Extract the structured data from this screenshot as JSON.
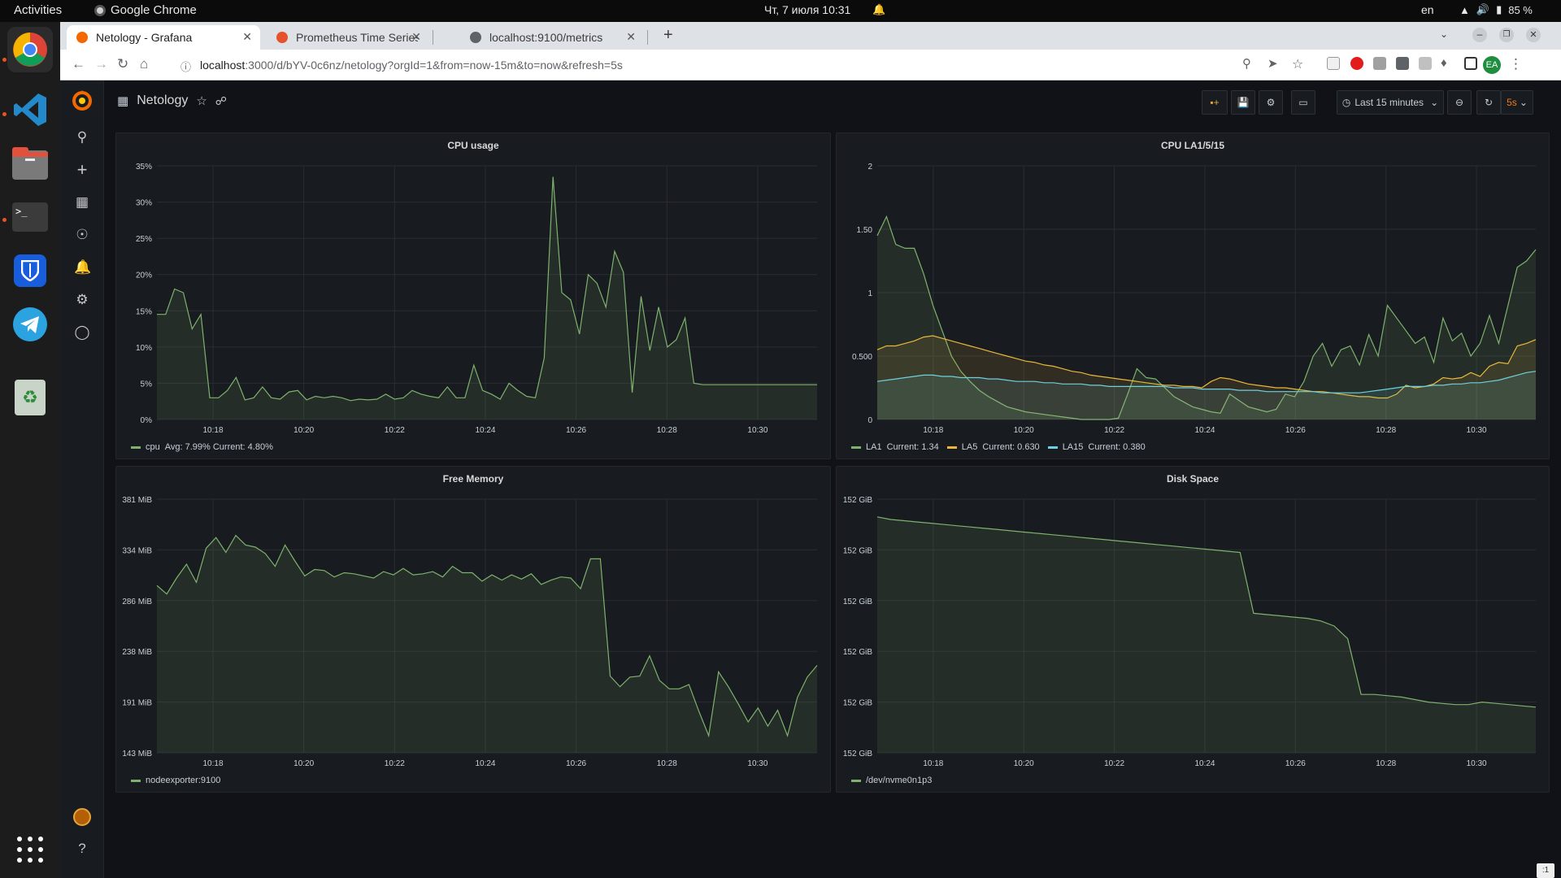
{
  "topbar": {
    "activities": "Activities",
    "app_name": "Google Chrome",
    "clock": "Чт, 7 июля  10:31",
    "lang": "en",
    "battery": "85 %"
  },
  "dock": {
    "items": [
      "chrome-icon",
      "vscode-icon",
      "files-icon",
      "terminal-icon",
      "bitwarden-icon",
      "telegram-icon",
      "trash-icon"
    ],
    "apps_grid": "show-apps-icon"
  },
  "browser": {
    "tabs": [
      {
        "title": "Netology - Grafana",
        "active": true
      },
      {
        "title": "Prometheus Time Series C",
        "active": false
      },
      {
        "title": "localhost:9100/metrics",
        "active": false
      }
    ],
    "url_host": "localhost",
    "url_rest": ":3000/d/bYV-0c6nz/netology?orgId=1&from=now-15m&to=now&refresh=5s",
    "profile": "EA"
  },
  "grafana": {
    "dashboard_title": "Netology",
    "time_range": "Last 15 minutes",
    "refresh": "5s",
    "corner_text": ":1",
    "x_ticks": [
      "10:18",
      "10:20",
      "10:22",
      "10:24",
      "10:26",
      "10:28",
      "10:30"
    ],
    "colors": {
      "green": "#7eb26d",
      "yellow": "#eab839",
      "blue": "#6ed0e0"
    }
  },
  "panels": {
    "cpu_usage": {
      "title": "CPU usage",
      "legend": [
        {
          "name": "cpu",
          "stats": "Avg: 7.99%  Current: 4.80%"
        }
      ]
    },
    "cpu_la": {
      "title": "CPU LA1/5/15",
      "legend": [
        {
          "name": "LA1",
          "stats": "Current: 1.34"
        },
        {
          "name": "LA5",
          "stats": "Current: 0.630"
        },
        {
          "name": "LA15",
          "stats": "Current: 0.380"
        }
      ]
    },
    "free_memory": {
      "title": "Free Memory",
      "legend": [
        {
          "name": "nodeexporter:9100",
          "stats": ""
        }
      ]
    },
    "disk_space": {
      "title": "Disk Space",
      "legend": [
        {
          "name": "/dev/nvme0n1p3",
          "stats": ""
        }
      ]
    }
  },
  "chart_data": [
    {
      "type": "area",
      "title": "CPU usage",
      "y_ticks": [
        "0%",
        "5%",
        "10%",
        "15%",
        "20%",
        "25%",
        "30%",
        "35%"
      ],
      "ylim": [
        0,
        35
      ],
      "xlim": [
        10.25,
        25.2
      ],
      "x_ticks": [
        "10:18",
        "10:20",
        "10:22",
        "10:24",
        "10:26",
        "10:28",
        "10:30"
      ],
      "series": [
        {
          "name": "cpu",
          "color": "#7eb26d",
          "x": [
            10.25,
            10.4,
            10.6,
            10.8,
            11.0,
            11.2,
            11.4,
            11.6,
            11.8,
            12.0,
            12.2,
            12.4,
            12.6,
            12.8,
            13.0,
            13.2,
            13.4,
            13.6,
            13.8,
            14.0,
            14.2,
            14.4,
            14.6,
            14.8,
            15.0,
            15.2,
            15.4,
            15.6,
            15.8,
            16.0,
            16.2,
            16.4,
            16.6,
            16.8,
            17.0,
            17.2,
            17.4,
            17.6,
            17.8,
            18.0,
            18.2,
            18.4,
            18.6,
            18.8,
            19.0,
            19.2,
            19.4,
            19.6,
            19.8,
            20.0,
            20.2,
            20.4,
            20.6,
            20.8,
            21.0,
            21.2,
            21.4,
            21.6,
            21.8,
            22.0,
            22.2,
            22.4,
            22.6,
            22.8,
            23.0,
            23.2,
            23.4,
            23.6,
            23.8,
            24.0,
            24.2,
            24.4,
            24.6,
            24.8,
            25.0,
            25.2
          ],
          "y": [
            14.5,
            14.5,
            18.0,
            17.5,
            12.5,
            14.5,
            3.0,
            3.0,
            4.0,
            5.8,
            2.7,
            3.0,
            4.5,
            3.0,
            2.8,
            3.8,
            4.0,
            2.7,
            3.2,
            3.0,
            3.2,
            3.0,
            2.6,
            2.8,
            2.7,
            2.8,
            3.5,
            2.8,
            3.0,
            4.0,
            3.5,
            3.2,
            3.0,
            4.5,
            3.0,
            3.0,
            7.5,
            4.0,
            3.5,
            2.8,
            5.0,
            4.0,
            3.2,
            3.0,
            8.5,
            33.5,
            17.5,
            16.5,
            11.8,
            20.0,
            18.8,
            15.5,
            23.2,
            20.3,
            3.7,
            17.0,
            9.5,
            15.5,
            10.0,
            11.0,
            14.0,
            5.0,
            4.8,
            4.8,
            4.8,
            4.8,
            4.8,
            4.8,
            4.8,
            4.8,
            4.8,
            4.8,
            4.8,
            4.8,
            4.8,
            4.8
          ]
        }
      ]
    },
    {
      "type": "area",
      "title": "CPU LA1/5/15",
      "y_ticks": [
        "0",
        "0.500",
        "1",
        "1.50",
        "2"
      ],
      "ylim": [
        0,
        2
      ],
      "x_ticks": [
        "10:18",
        "10:20",
        "10:22",
        "10:24",
        "10:26",
        "10:28",
        "10:30"
      ],
      "series": [
        {
          "name": "LA1",
          "color": "#7eb26d",
          "y": [
            1.45,
            1.6,
            1.38,
            1.35,
            1.35,
            1.15,
            0.9,
            0.7,
            0.5,
            0.38,
            0.3,
            0.23,
            0.18,
            0.14,
            0.1,
            0.08,
            0.06,
            0.05,
            0.04,
            0.03,
            0.02,
            0.01,
            0.0,
            0.0,
            0.0,
            0.0,
            0.01,
            0.2,
            0.4,
            0.33,
            0.32,
            0.25,
            0.18,
            0.14,
            0.1,
            0.08,
            0.06,
            0.05,
            0.2,
            0.15,
            0.1,
            0.08,
            0.06,
            0.08,
            0.2,
            0.18,
            0.3,
            0.5,
            0.6,
            0.42,
            0.55,
            0.58,
            0.43,
            0.67,
            0.5,
            0.9,
            0.8,
            0.7,
            0.6,
            0.65,
            0.45,
            0.8,
            0.62,
            0.68,
            0.5,
            0.6,
            0.82,
            0.6,
            0.9,
            1.2,
            1.25,
            1.34
          ]
        },
        {
          "name": "LA5",
          "color": "#eab839",
          "y": [
            0.55,
            0.58,
            0.58,
            0.6,
            0.62,
            0.65,
            0.66,
            0.64,
            0.62,
            0.6,
            0.58,
            0.56,
            0.54,
            0.52,
            0.5,
            0.48,
            0.46,
            0.45,
            0.43,
            0.42,
            0.4,
            0.38,
            0.37,
            0.35,
            0.34,
            0.33,
            0.32,
            0.31,
            0.3,
            0.29,
            0.28,
            0.27,
            0.27,
            0.26,
            0.26,
            0.25,
            0.3,
            0.33,
            0.32,
            0.3,
            0.28,
            0.27,
            0.26,
            0.25,
            0.25,
            0.24,
            0.23,
            0.22,
            0.22,
            0.21,
            0.2,
            0.19,
            0.18,
            0.18,
            0.17,
            0.17,
            0.2,
            0.27,
            0.25,
            0.26,
            0.28,
            0.33,
            0.32,
            0.33,
            0.37,
            0.34,
            0.42,
            0.45,
            0.44,
            0.58,
            0.6,
            0.63
          ]
        },
        {
          "name": "LA15",
          "color": "#6ed0e0",
          "y": [
            0.3,
            0.31,
            0.32,
            0.33,
            0.34,
            0.35,
            0.35,
            0.34,
            0.34,
            0.33,
            0.33,
            0.33,
            0.32,
            0.32,
            0.31,
            0.3,
            0.3,
            0.3,
            0.29,
            0.29,
            0.28,
            0.28,
            0.28,
            0.27,
            0.27,
            0.26,
            0.26,
            0.26,
            0.26,
            0.26,
            0.26,
            0.26,
            0.25,
            0.25,
            0.25,
            0.24,
            0.24,
            0.24,
            0.24,
            0.23,
            0.23,
            0.23,
            0.22,
            0.22,
            0.22,
            0.22,
            0.22,
            0.22,
            0.21,
            0.21,
            0.21,
            0.21,
            0.21,
            0.22,
            0.23,
            0.24,
            0.25,
            0.26,
            0.26,
            0.26,
            0.27,
            0.27,
            0.28,
            0.28,
            0.29,
            0.29,
            0.3,
            0.31,
            0.33,
            0.35,
            0.37,
            0.38
          ]
        }
      ]
    },
    {
      "type": "area",
      "title": "Free Memory",
      "y_ticks": [
        "143 MiB",
        "191 MiB",
        "238 MiB",
        "286 MiB",
        "334 MiB",
        "381 MiB"
      ],
      "ylim": [
        143,
        381
      ],
      "x_ticks": [
        "10:18",
        "10:20",
        "10:22",
        "10:24",
        "10:26",
        "10:28",
        "10:30"
      ],
      "series": [
        {
          "name": "nodeexporter:9100",
          "color": "#7eb26d",
          "y": [
            300,
            292,
            307,
            320,
            303,
            335,
            345,
            331,
            347,
            338,
            336,
            330,
            318,
            338,
            323,
            309,
            315,
            314,
            308,
            312,
            311,
            309,
            307,
            313,
            310,
            316,
            310,
            311,
            313,
            308,
            318,
            312,
            312,
            304,
            310,
            305,
            310,
            306,
            311,
            301,
            305,
            308,
            307,
            297,
            325,
            325,
            215,
            205,
            214,
            215,
            234,
            211,
            203,
            203,
            207,
            182,
            159,
            219,
            205,
            189,
            172,
            185,
            168,
            183,
            159,
            195,
            214,
            225
          ]
        }
      ]
    },
    {
      "type": "area",
      "title": "Disk Space",
      "y_ticks": [
        "152 GiB",
        "152 GiB",
        "152 GiB",
        "152 GiB",
        "152 GiB",
        "152 GiB"
      ],
      "series": [
        {
          "name": "/dev/nvme0n1p3",
          "color": "#7eb26d",
          "y": [
            0.93,
            0.92,
            0.915,
            0.91,
            0.905,
            0.9,
            0.895,
            0.89,
            0.885,
            0.88,
            0.875,
            0.87,
            0.865,
            0.86,
            0.855,
            0.85,
            0.845,
            0.84,
            0.835,
            0.83,
            0.825,
            0.82,
            0.815,
            0.81,
            0.805,
            0.8,
            0.795,
            0.79,
            0.55,
            0.545,
            0.54,
            0.535,
            0.53,
            0.52,
            0.5,
            0.45,
            0.23,
            0.23,
            0.225,
            0.22,
            0.21,
            0.2,
            0.195,
            0.19,
            0.19,
            0.2,
            0.195,
            0.19,
            0.185,
            0.18
          ]
        }
      ]
    }
  ]
}
